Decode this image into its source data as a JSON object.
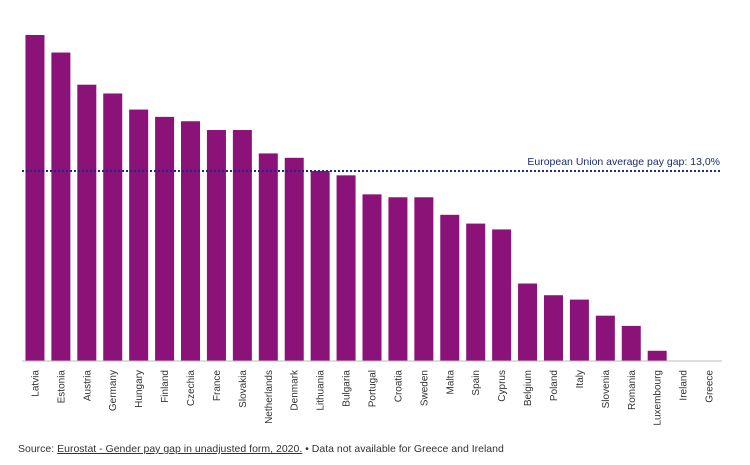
{
  "chart_data": {
    "type": "bar",
    "categories": [
      "Latvia",
      "Estonia",
      "Austria",
      "Germany",
      "Hungary",
      "Finland",
      "Czechia",
      "France",
      "Slovakia",
      "Netherlands",
      "Denmark",
      "Lithuania",
      "Bulgaria",
      "Portugal",
      "Croatia",
      "Sweden",
      "Malta",
      "Spain",
      "Cyprus",
      "Belgium",
      "Poland",
      "Italy",
      "Slovenia",
      "Romania",
      "Luxembourg",
      "Ireland",
      "Greece"
    ],
    "values": [
      22.3,
      21.1,
      18.9,
      18.3,
      17.2,
      16.7,
      16.4,
      15.8,
      15.8,
      14.2,
      13.9,
      13.0,
      12.7,
      11.4,
      11.2,
      11.2,
      10.0,
      9.4,
      9.0,
      5.3,
      4.5,
      4.2,
      3.1,
      2.4,
      0.7,
      null,
      null
    ],
    "ylim": [
      0,
      22.3
    ],
    "average": {
      "value": 13.0,
      "label": "European Union average pay gap: 13,0%"
    },
    "bar_color": "#8b1278",
    "average_line_color": "#1b2a7a"
  },
  "footer": {
    "prefix": "Source: ",
    "link_text": "Eurostat - Gender pay gap in unadjusted form, 2020.",
    "suffix": " • Data not available for Greece and Ireland"
  }
}
